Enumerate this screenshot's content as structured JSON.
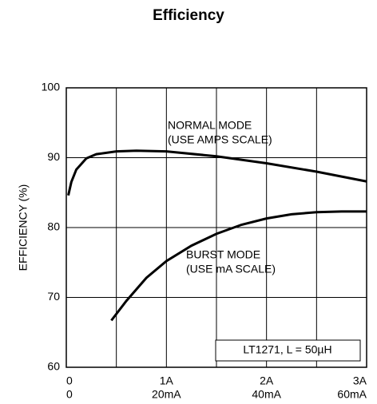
{
  "chart_data": {
    "type": "line",
    "title": "Efficiency",
    "ylabel": "EFFICIENCY (%)",
    "xlim": [
      0,
      3
    ],
    "xticks": [
      0,
      {
        "value": 1,
        "label": "1A"
      },
      {
        "value": 2,
        "label": "2A"
      },
      {
        "value": 3,
        "label": "3A"
      }
    ],
    "x2lim": [
      0,
      60
    ],
    "x2ticks": [
      0,
      {
        "value": 20,
        "label": "20mA"
      },
      {
        "value": 40,
        "label": "40mA"
      },
      {
        "value": 60,
        "label": "60mA"
      }
    ],
    "xgrid": [
      0.5,
      1,
      1.5,
      2,
      2.5
    ],
    "ylim": [
      60,
      100
    ],
    "yticks": [
      60,
      70,
      80,
      90,
      100
    ],
    "grid": true,
    "annotations": [
      [
        "NORMAL MODE",
        "(USE AMPS SCALE)"
      ],
      [
        "BURST MODE",
        "(USE mA SCALE)"
      ],
      [
        "LT1271, L = 50µH"
      ]
    ],
    "series": [
      {
        "name": "NORMAL MODE",
        "color": "#000000",
        "axis": "x",
        "x": [
          0.02,
          0.05,
          0.1,
          0.2,
          0.3,
          0.5,
          0.7,
          1,
          1.5,
          2,
          2.5,
          3
        ],
        "values": [
          84.6,
          86.5,
          88.3,
          89.9,
          90.5,
          90.9,
          91.0,
          90.9,
          90.2,
          89.2,
          88.0,
          86.6
        ]
      },
      {
        "name": "BURST MODE",
        "color": "#000000",
        "axis": "x2",
        "x": [
          9,
          12,
          16,
          20,
          25,
          30,
          35,
          40,
          45,
          50,
          55,
          60
        ],
        "values": [
          66.7,
          69.5,
          72.8,
          75.2,
          77.4,
          79.1,
          80.4,
          81.3,
          81.9,
          82.2,
          82.3,
          82.3
        ]
      }
    ]
  }
}
